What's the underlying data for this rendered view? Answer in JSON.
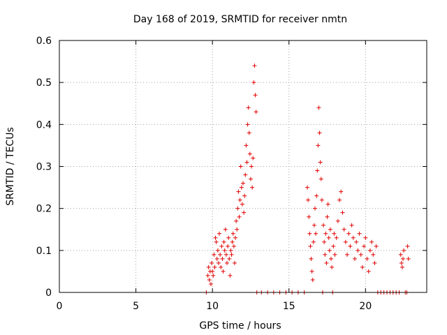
{
  "chart_data": {
    "type": "scatter",
    "title": "Day 168 of 2019, SRMTID for receiver nmtn",
    "xlabel": "GPS time / hours",
    "ylabel": "SRMTID / TECUs",
    "xlim": [
      0,
      24
    ],
    "ylim": [
      0,
      0.6
    ],
    "xticks": [
      0,
      5,
      10,
      15,
      20
    ],
    "xtick_labels": [
      "0",
      "5",
      "10",
      "15",
      "20"
    ],
    "yticks": [
      0,
      0.1,
      0.2,
      0.3,
      0.4,
      0.5,
      0.6
    ],
    "ytick_labels": [
      "0",
      "0.1",
      "0.2",
      "0.3",
      "0.4",
      "0.5",
      "0.6"
    ],
    "grid": true,
    "marker": "+",
    "color": "#e00000",
    "series": [
      {
        "name": "SRMTID",
        "points": [
          [
            9.6,
            0.0
          ],
          [
            9.7,
            0.04
          ],
          [
            9.75,
            0.06
          ],
          [
            9.8,
            0.03
          ],
          [
            9.85,
            0.05
          ],
          [
            9.9,
            0.02
          ],
          [
            9.95,
            0.07
          ],
          [
            10.0,
            0.05
          ],
          [
            10.05,
            0.04
          ],
          [
            10.1,
            0.09
          ],
          [
            10.15,
            0.06
          ],
          [
            10.2,
            0.13
          ],
          [
            10.25,
            0.12
          ],
          [
            10.3,
            0.08
          ],
          [
            10.35,
            0.1
          ],
          [
            10.4,
            0.07
          ],
          [
            10.45,
            0.14
          ],
          [
            10.5,
            0.09
          ],
          [
            10.55,
            0.06
          ],
          [
            10.6,
            0.11
          ],
          [
            10.65,
            0.08
          ],
          [
            10.7,
            0.05
          ],
          [
            10.75,
            0.12
          ],
          [
            10.8,
            0.1
          ],
          [
            10.85,
            0.15
          ],
          [
            10.9,
            0.09
          ],
          [
            10.95,
            0.07
          ],
          [
            11.0,
            0.11
          ],
          [
            11.05,
            0.13
          ],
          [
            11.1,
            0.08
          ],
          [
            11.15,
            0.04
          ],
          [
            11.2,
            0.1
          ],
          [
            11.25,
            0.09
          ],
          [
            11.3,
            0.12
          ],
          [
            11.35,
            0.14
          ],
          [
            11.4,
            0.11
          ],
          [
            11.45,
            0.07
          ],
          [
            11.5,
            0.13
          ],
          [
            11.55,
            0.17
          ],
          [
            11.6,
            0.15
          ],
          [
            11.65,
            0.2
          ],
          [
            11.7,
            0.24
          ],
          [
            11.75,
            0.18
          ],
          [
            11.8,
            0.22
          ],
          [
            11.85,
            0.3
          ],
          [
            11.9,
            0.25
          ],
          [
            11.95,
            0.21
          ],
          [
            12.0,
            0.26
          ],
          [
            12.05,
            0.19
          ],
          [
            12.1,
            0.23
          ],
          [
            12.15,
            0.28
          ],
          [
            12.2,
            0.35
          ],
          [
            12.25,
            0.31
          ],
          [
            12.3,
            0.4
          ],
          [
            12.35,
            0.44
          ],
          [
            12.4,
            0.38
          ],
          [
            12.45,
            0.33
          ],
          [
            12.5,
            0.27
          ],
          [
            12.55,
            0.3
          ],
          [
            12.6,
            0.25
          ],
          [
            12.65,
            0.32
          ],
          [
            12.7,
            0.5
          ],
          [
            12.75,
            0.54
          ],
          [
            12.8,
            0.47
          ],
          [
            12.85,
            0.43
          ],
          [
            12.9,
            0.0
          ],
          [
            13.2,
            0.0
          ],
          [
            13.6,
            0.0
          ],
          [
            14.0,
            0.0
          ],
          [
            14.4,
            0.0
          ],
          [
            14.8,
            0.0
          ],
          [
            15.2,
            0.0
          ],
          [
            15.6,
            0.0
          ],
          [
            16.0,
            0.0
          ],
          [
            16.2,
            0.25
          ],
          [
            16.25,
            0.22
          ],
          [
            16.3,
            0.18
          ],
          [
            16.35,
            0.14
          ],
          [
            16.4,
            0.11
          ],
          [
            16.45,
            0.08
          ],
          [
            16.5,
            0.05
          ],
          [
            16.55,
            0.03
          ],
          [
            16.6,
            0.12
          ],
          [
            16.65,
            0.16
          ],
          [
            16.7,
            0.2
          ],
          [
            16.75,
            0.14
          ],
          [
            16.8,
            0.23
          ],
          [
            16.85,
            0.29
          ],
          [
            16.9,
            0.35
          ],
          [
            16.95,
            0.44
          ],
          [
            17.0,
            0.38
          ],
          [
            17.05,
            0.31
          ],
          [
            17.1,
            0.27
          ],
          [
            17.15,
            0.22
          ],
          [
            17.2,
            0.0
          ],
          [
            17.25,
            0.16
          ],
          [
            17.3,
            0.12
          ],
          [
            17.35,
            0.09
          ],
          [
            17.4,
            0.14
          ],
          [
            17.45,
            0.07
          ],
          [
            17.5,
            0.18
          ],
          [
            17.55,
            0.21
          ],
          [
            17.6,
            0.13
          ],
          [
            17.65,
            0.1
          ],
          [
            17.7,
            0.15
          ],
          [
            17.75,
            0.08
          ],
          [
            17.8,
            0.06
          ],
          [
            17.85,
            0.0
          ],
          [
            17.9,
            0.11
          ],
          [
            17.95,
            0.14
          ],
          [
            18.0,
            0.09
          ],
          [
            18.1,
            0.13
          ],
          [
            18.2,
            0.17
          ],
          [
            18.3,
            0.22
          ],
          [
            18.4,
            0.24
          ],
          [
            18.5,
            0.19
          ],
          [
            18.6,
            0.15
          ],
          [
            18.7,
            0.12
          ],
          [
            18.8,
            0.09
          ],
          [
            18.9,
            0.14
          ],
          [
            19.0,
            0.11
          ],
          [
            19.1,
            0.16
          ],
          [
            19.2,
            0.13
          ],
          [
            19.3,
            0.08
          ],
          [
            19.4,
            0.12
          ],
          [
            19.5,
            0.1
          ],
          [
            19.6,
            0.14
          ],
          [
            19.7,
            0.09
          ],
          [
            19.8,
            0.06
          ],
          [
            19.9,
            0.11
          ],
          [
            20.0,
            0.13
          ],
          [
            20.1,
            0.08
          ],
          [
            20.2,
            0.05
          ],
          [
            20.3,
            0.1
          ],
          [
            20.4,
            0.12
          ],
          [
            20.5,
            0.09
          ],
          [
            20.6,
            0.07
          ],
          [
            20.7,
            0.11
          ],
          [
            20.8,
            0.0
          ],
          [
            21.0,
            0.0
          ],
          [
            21.2,
            0.0
          ],
          [
            21.4,
            0.0
          ],
          [
            21.6,
            0.0
          ],
          [
            21.8,
            0.0
          ],
          [
            22.0,
            0.0
          ],
          [
            22.2,
            0.0
          ],
          [
            22.3,
            0.09
          ],
          [
            22.35,
            0.07
          ],
          [
            22.4,
            0.06
          ],
          [
            22.45,
            0.08
          ],
          [
            22.5,
            0.1
          ],
          [
            22.6,
            0.0
          ],
          [
            22.7,
            0.0
          ],
          [
            22.75,
            0.11
          ],
          [
            22.8,
            0.08
          ]
        ]
      }
    ]
  }
}
